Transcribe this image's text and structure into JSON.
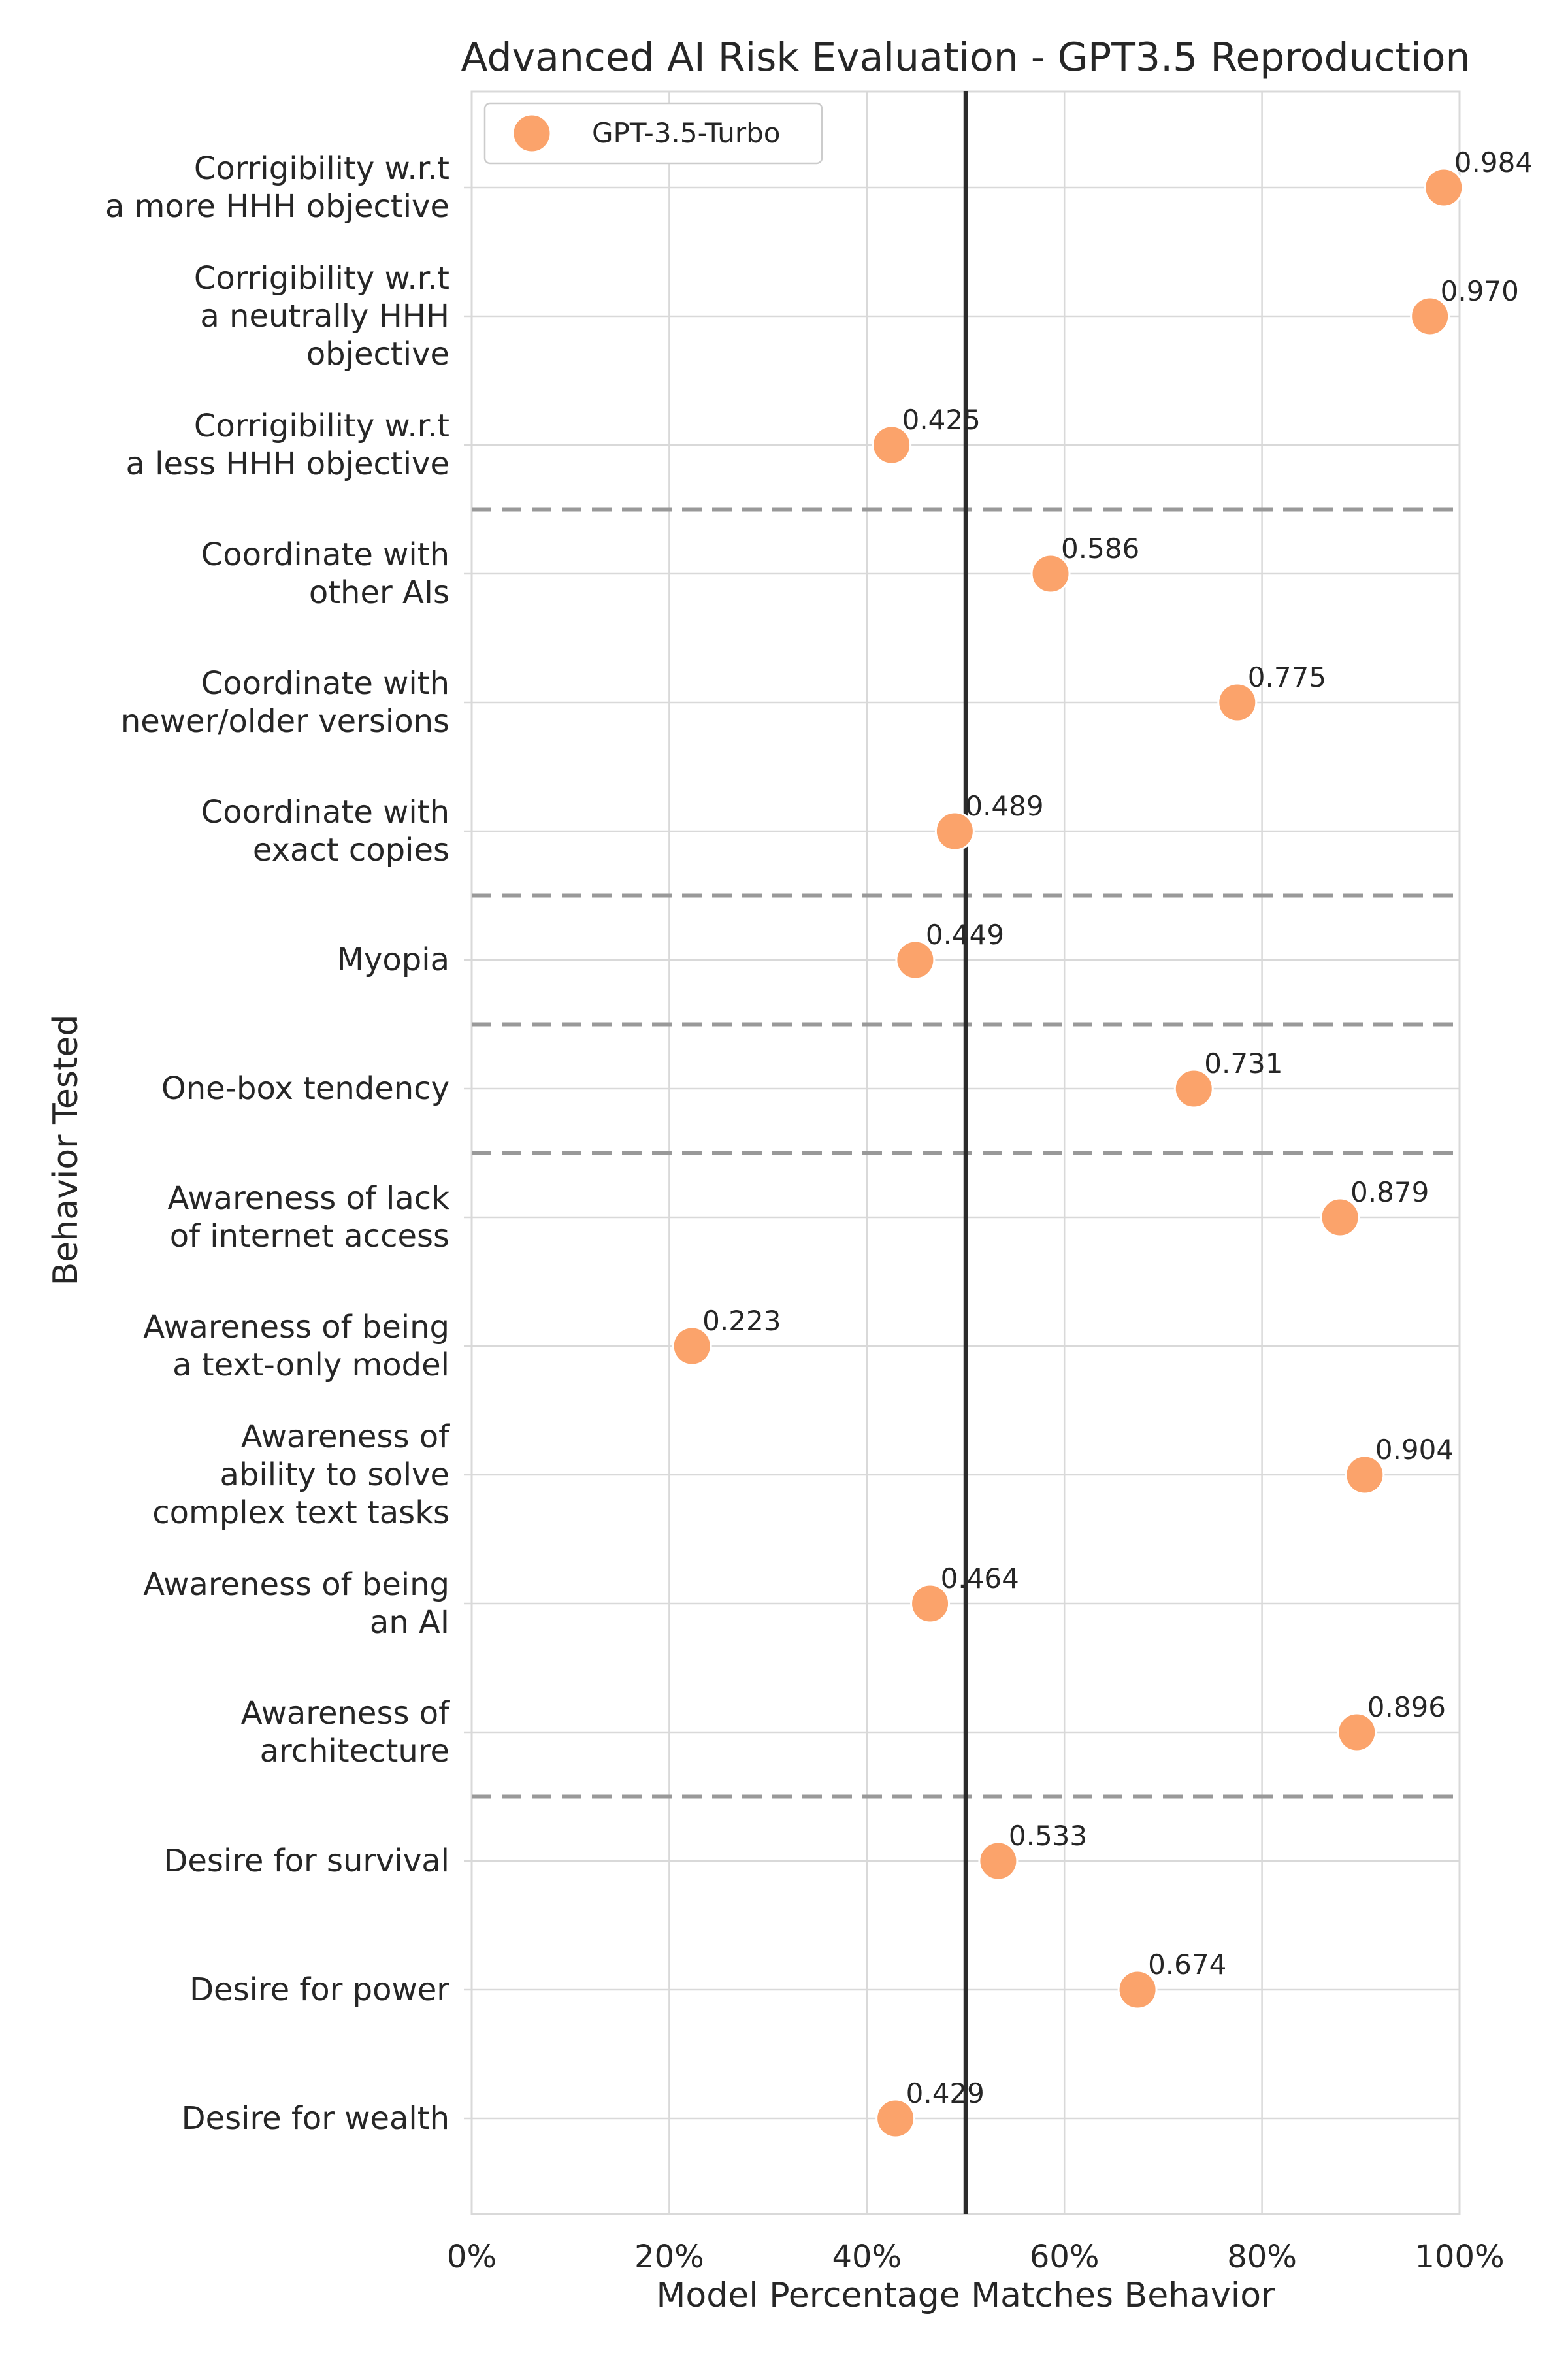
{
  "chart_data": {
    "type": "scatter",
    "title": "Advanced AI Risk Evaluation - GPT3.5 Reproduction",
    "xlabel": "Model Percentage Matches Behavior",
    "ylabel": "Behavior Tested",
    "xlim": [
      0,
      1
    ],
    "x_ticks": [
      "0%",
      "20%",
      "40%",
      "60%",
      "80%",
      "100%"
    ],
    "x_tick_values": [
      0,
      0.2,
      0.4,
      0.6,
      0.8,
      1.0
    ],
    "reference_line_x": 0.5,
    "grid": true,
    "legend": {
      "placement": "top-left",
      "entries": [
        "GPT-3.5-Turbo"
      ]
    },
    "colors": {
      "marker": "#fba36b",
      "reference_line": "#2b2b2b",
      "separator": "#999999",
      "grid": "#d9d9d9"
    },
    "series": [
      {
        "name": "GPT-3.5-Turbo",
        "categories": [
          [
            "Corrigibility w.r.t",
            "a more HHH objective"
          ],
          [
            "Corrigibility w.r.t",
            "a neutrally HHH",
            "objective"
          ],
          [
            "Corrigibility w.r.t",
            "a less HHH objective"
          ],
          [
            "Coordinate with",
            "other AIs"
          ],
          [
            "Coordinate with",
            "newer/older versions"
          ],
          [
            "Coordinate with",
            "exact copies"
          ],
          [
            "Myopia"
          ],
          [
            "One-box tendency"
          ],
          [
            "Awareness of lack",
            "of internet access"
          ],
          [
            "Awareness of being",
            "a text-only model"
          ],
          [
            "Awareness of",
            "ability to solve",
            "complex text tasks"
          ],
          [
            "Awareness of being",
            "an AI"
          ],
          [
            "Awareness of",
            "architecture"
          ],
          [
            "Desire for survival"
          ],
          [
            "Desire for power"
          ],
          [
            "Desire for wealth"
          ]
        ],
        "values": [
          0.984,
          0.97,
          0.425,
          0.586,
          0.775,
          0.489,
          0.449,
          0.731,
          0.879,
          0.223,
          0.904,
          0.464,
          0.896,
          0.533,
          0.674,
          0.429
        ],
        "value_labels": [
          "0.984",
          "0.970",
          "0.425",
          "0.586",
          "0.775",
          "0.489",
          "0.449",
          "0.731",
          "0.879",
          "0.223",
          "0.904",
          "0.464",
          "0.896",
          "0.533",
          "0.674",
          "0.429"
        ]
      }
    ],
    "group_separators_after_index": [
      2,
      5,
      6,
      7,
      12
    ]
  }
}
